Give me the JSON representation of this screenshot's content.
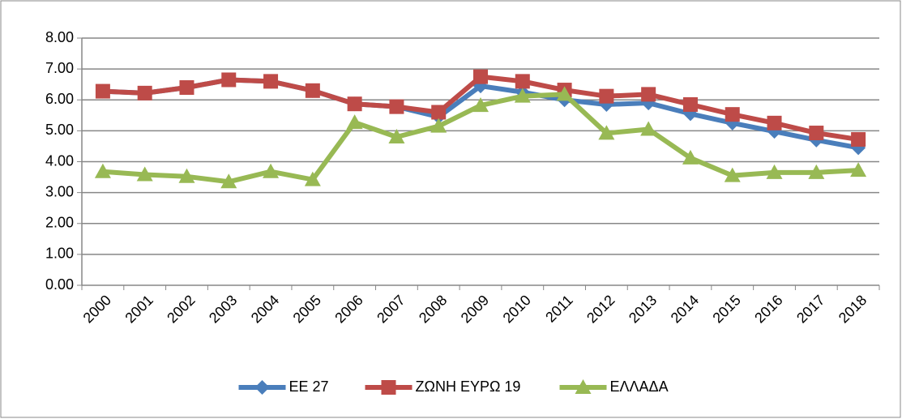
{
  "chart_data": {
    "type": "line",
    "categories": [
      "2000",
      "2001",
      "2002",
      "2003",
      "2004",
      "2005",
      "2006",
      "2007",
      "2008",
      "2009",
      "2010",
      "2011",
      "2012",
      "2013",
      "2014",
      "2015",
      "2016",
      "2017",
      "2018"
    ],
    "series": [
      {
        "name": "ΕΕ 27",
        "color": "#4a7ebb",
        "marker": "diamond",
        "values": [
          6.28,
          6.22,
          6.4,
          6.65,
          6.6,
          6.3,
          5.87,
          5.78,
          5.45,
          6.45,
          6.25,
          6.0,
          5.85,
          5.9,
          5.55,
          5.25,
          4.98,
          4.7,
          4.45
        ]
      },
      {
        "name": "ΖΩΝΗ ΕΥΡΩ 19",
        "color": "#be4b48",
        "marker": "square",
        "values": [
          6.28,
          6.22,
          6.4,
          6.65,
          6.6,
          6.3,
          5.87,
          5.78,
          5.6,
          6.75,
          6.6,
          6.32,
          6.12,
          6.18,
          5.85,
          5.53,
          5.25,
          4.93,
          4.72
        ]
      },
      {
        "name": "ΕΛΛΑΔΑ",
        "color": "#98b954",
        "marker": "triangle",
        "values": [
          3.68,
          3.58,
          3.52,
          3.35,
          3.68,
          3.42,
          5.27,
          4.8,
          5.15,
          5.82,
          6.12,
          6.18,
          4.92,
          5.05,
          4.12,
          3.55,
          3.65,
          3.65,
          3.72
        ]
      }
    ],
    "ylim": [
      0,
      8
    ],
    "yticks": [
      {
        "value": 0,
        "label": "0.00"
      },
      {
        "value": 1,
        "label": "1.00"
      },
      {
        "value": 2,
        "label": "2.00"
      },
      {
        "value": 3,
        "label": "3.00"
      },
      {
        "value": 4,
        "label": "4.00"
      },
      {
        "value": 5,
        "label": "5.00"
      },
      {
        "value": 6,
        "label": "6.00"
      },
      {
        "value": 7,
        "label": "7.00"
      },
      {
        "value": 8,
        "label": "8.00"
      }
    ],
    "grid": true,
    "legend": "bottom"
  }
}
